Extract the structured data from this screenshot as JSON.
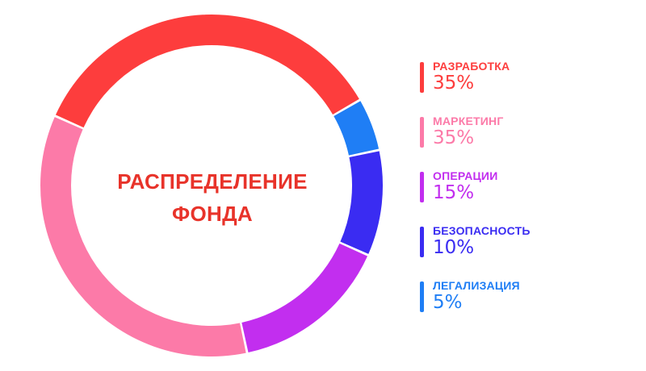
{
  "chart_data": {
    "type": "pie",
    "title": "РАСПРЕДЕЛЕНИЕ ФОНДА",
    "title_lines": [
      "РАСПРЕДЕЛЕНИЕ",
      "ФОНДА"
    ],
    "categories": [
      "РАЗРАБОТКА",
      "МАРКЕТИНГ",
      "ОПЕРАЦИИ",
      "БЕЗОПАСНОСТЬ",
      "ЛЕГАЛИЗАЦИЯ"
    ],
    "values": [
      35,
      35,
      15,
      10,
      5
    ],
    "value_labels": [
      "35%",
      "35%",
      "15%",
      "10%",
      "5%"
    ],
    "colors": [
      "#fd3d3d",
      "#fc7aa8",
      "#c22eef",
      "#3a2cf2",
      "#1f7ef5"
    ],
    "donut": true,
    "start_angle_deg": 30,
    "direction": "counterclockwise",
    "legend_position": "right"
  }
}
